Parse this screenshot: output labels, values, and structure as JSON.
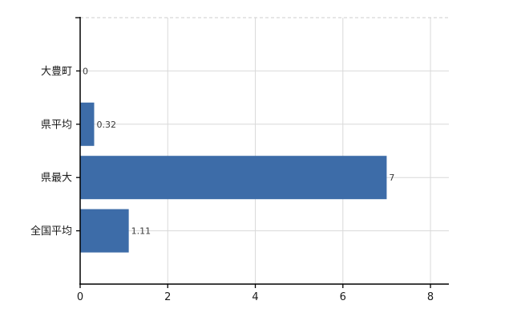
{
  "chart_data": {
    "type": "bar",
    "orientation": "horizontal",
    "title": "",
    "xlabel": "",
    "ylabel": "",
    "categories": [
      "大豊町",
      "県平均",
      "県最大",
      "全国平均"
    ],
    "values": [
      0,
      0.32,
      7,
      1.11
    ],
    "value_labels": [
      "0",
      "0.32",
      "7",
      "1.11"
    ],
    "x_ticks": [
      0,
      2,
      4,
      6,
      8
    ],
    "x_tick_labels": [
      "0",
      "2",
      "4",
      "6",
      "8"
    ],
    "xlim": [
      0,
      8.42
    ],
    "grid": true,
    "legend": false,
    "colors": {
      "bar": "#3d6ca8",
      "grid_line": "#d9d9d9",
      "top_border_dashed": "#cccccc",
      "axis_line": "#000000",
      "tick_label": "#1a1a1a",
      "category_label": "#1a1a1a",
      "value_label": "#3a3a3a",
      "background": "#ffffff"
    }
  }
}
